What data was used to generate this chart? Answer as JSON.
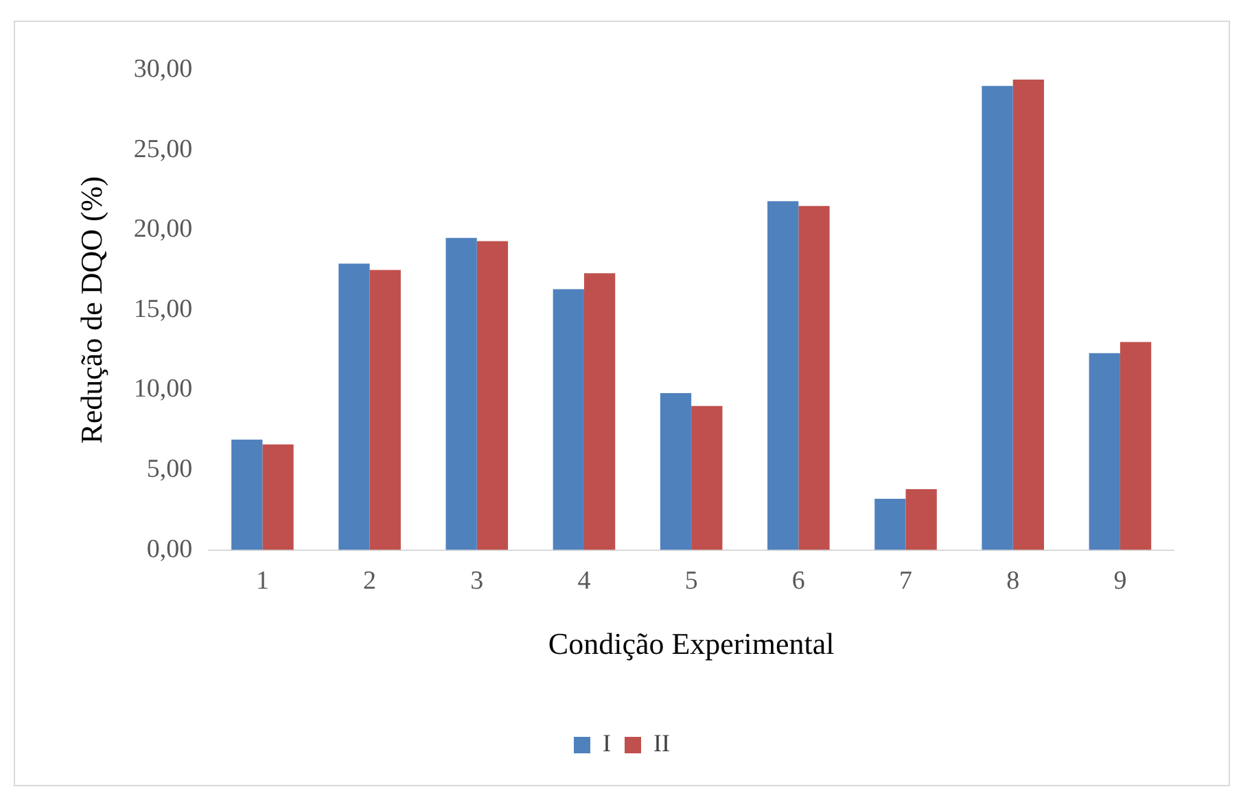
{
  "chart_data": {
    "type": "bar",
    "xlabel": "Condição Experimental",
    "ylabel": "Redução de DQO (%)",
    "categories": [
      "1",
      "2",
      "3",
      "4",
      "5",
      "6",
      "7",
      "8",
      "9"
    ],
    "series": [
      {
        "name": "I",
        "color": "#4f81bd",
        "values": [
          6.9,
          17.9,
          19.5,
          16.3,
          9.8,
          21.8,
          3.2,
          29.0,
          12.3
        ]
      },
      {
        "name": "II",
        "color": "#c0504d",
        "values": [
          6.6,
          17.5,
          19.3,
          17.3,
          9.0,
          21.5,
          3.8,
          29.4,
          13.0
        ]
      }
    ],
    "ylim": [
      0,
      30
    ],
    "yticks": [
      {
        "value": 0,
        "label": "0,00"
      },
      {
        "value": 5,
        "label": "5,00"
      },
      {
        "value": 10,
        "label": "10,00"
      },
      {
        "value": 15,
        "label": "15,00"
      },
      {
        "value": 20,
        "label": "20,00"
      },
      {
        "value": 25,
        "label": "25,00"
      },
      {
        "value": 30,
        "label": "30,00"
      }
    ],
    "grid": false,
    "legend": "bottom"
  }
}
